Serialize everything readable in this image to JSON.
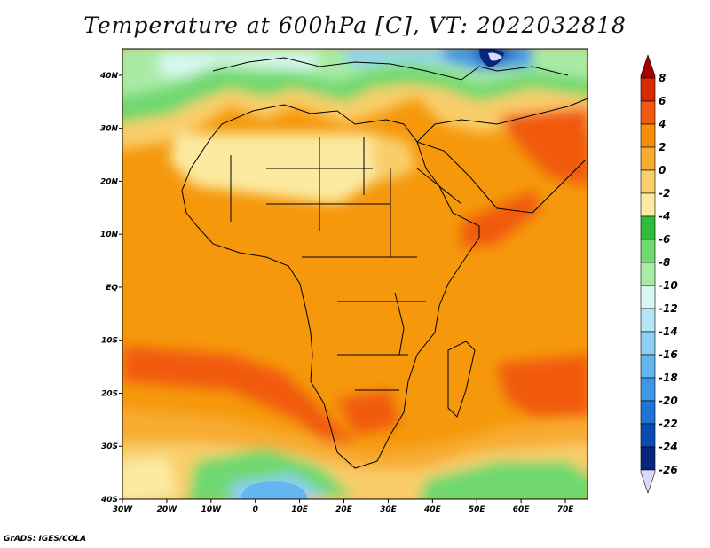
{
  "title": "Temperature at 600hPa [C], VT: 2022032818",
  "credit": "GrADS: IGES/COLA",
  "map": {
    "lon_ticks": [
      "30W",
      "20W",
      "10W",
      "0",
      "10E",
      "20E",
      "30E",
      "40E",
      "50E",
      "60E",
      "70E"
    ],
    "lat_ticks": [
      "40N",
      "30N",
      "20N",
      "10N",
      "EQ",
      "10S",
      "20S",
      "30S",
      "40S"
    ],
    "lon_range": [
      -30,
      75
    ],
    "lat_range": [
      -40,
      45
    ]
  },
  "colorbar": {
    "labels": [
      "8",
      "6",
      "4",
      "2",
      "0",
      "-2",
      "-4",
      "-6",
      "-8",
      "-10",
      "-12",
      "-14",
      "-16",
      "-18",
      "-20",
      "-22",
      "-24",
      "-26"
    ],
    "colors": [
      "#a50000",
      "#d72a00",
      "#f15a10",
      "#f58c0a",
      "#f7ac30",
      "#f9ce6a",
      "#fbeaa0",
      "#2fbd3a",
      "#6fd86f",
      "#a9eba5",
      "#d9f8f3",
      "#b6e6f5",
      "#8ccff3",
      "#64b6ee",
      "#3f97e6",
      "#1f74d6",
      "#0b4cb4",
      "#06257b",
      "#dcd8f8"
    ]
  }
}
